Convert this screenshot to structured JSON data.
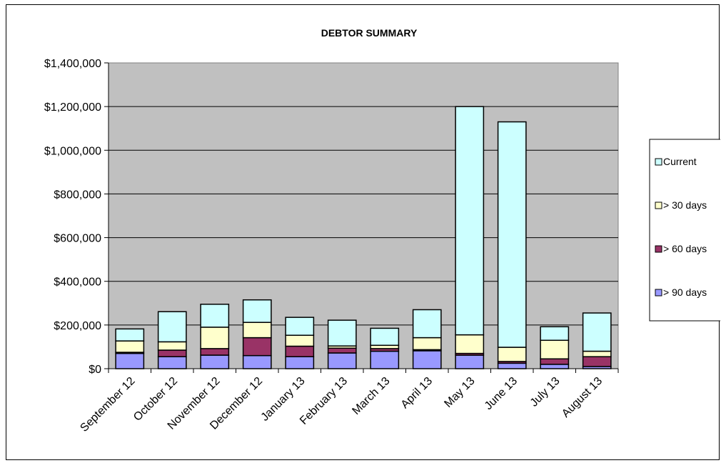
{
  "chart_data": {
    "type": "bar",
    "stacked": true,
    "title": "DEBTOR SUMMARY",
    "xlabel": "",
    "ylabel": "",
    "ylim": [
      0,
      1400000
    ],
    "yticks": [
      0,
      200000,
      400000,
      600000,
      800000,
      1000000,
      1200000,
      1400000
    ],
    "ytick_labels": [
      "$0",
      "$200,000",
      "$400,000",
      "$600,000",
      "$800,000",
      "$1,000,000",
      "$1,200,000",
      "$1,400,000"
    ],
    "categories": [
      "September 12",
      "October 12",
      "November 12",
      "December 12",
      "January 13",
      "February 13",
      "March 13",
      "April 13",
      "May 13",
      "June 13",
      "July 13",
      "August 13"
    ],
    "grid": true,
    "legend_position": "right",
    "plot_background": "#c0c0c0",
    "series": [
      {
        "name": "> 90 days",
        "color": "#9999ff",
        "values": [
          70000,
          55000,
          62000,
          60000,
          55000,
          72000,
          80000,
          82000,
          62000,
          25000,
          20000,
          10000
        ]
      },
      {
        "name": "> 60 days",
        "color": "#993366",
        "values": [
          5000,
          30000,
          30000,
          82000,
          48000,
          22000,
          12000,
          5000,
          8000,
          8000,
          25000,
          45000
        ]
      },
      {
        "name": "> 30 days",
        "color": "#ffffcc",
        "values": [
          52000,
          38000,
          98000,
          70000,
          50000,
          10000,
          15000,
          55000,
          85000,
          65000,
          85000,
          25000
        ]
      },
      {
        "name": "Current",
        "color": "#ccffff",
        "values": [
          55000,
          138000,
          105000,
          103000,
          82000,
          118000,
          78000,
          128000,
          1045000,
          1032000,
          62000,
          175000
        ]
      }
    ]
  }
}
